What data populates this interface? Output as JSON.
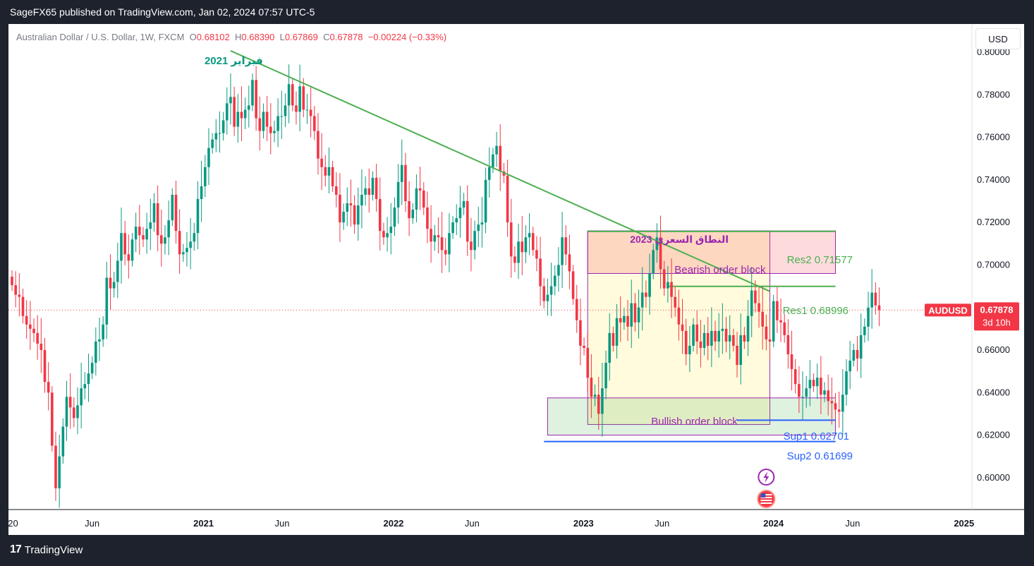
{
  "header": {
    "publisher": "SageFX65 published on TradingView.com, Jan 02, 2024 07:57 UTC-5"
  },
  "legend": {
    "symbol": "Australian Dollar / U.S. Dollar, 1W, FXCM",
    "open_label": "O",
    "open": "0.68102",
    "high_label": "H",
    "high": "0.68390",
    "low_label": "L",
    "low": "0.67869",
    "close_label": "C",
    "close": "0.67878",
    "change": "−0.00224 (−0.33%)"
  },
  "currency_button": "USD",
  "footer": {
    "brand": "TradingView",
    "logo_glyph": "17"
  },
  "colors": {
    "up": "#089981",
    "down": "#f23645",
    "trend": "#4caf50",
    "support": "#2962ff",
    "annotation": "#9c27b0"
  },
  "chart_data": {
    "type": "candlestick",
    "x_start": "2019-12-30",
    "interval": "1W",
    "ylim": [
      0.585,
      0.806
    ],
    "y_ticks": [
      0.6,
      0.62,
      0.64,
      0.66,
      0.68,
      0.7,
      0.72,
      0.74,
      0.76,
      0.78,
      0.8
    ],
    "y_tick_labels": [
      "0.60000",
      "0.62000",
      "0.64000",
      "0.66000",
      "0.68000",
      "0.70000",
      "0.72000",
      "0.74000",
      "0.76000",
      "0.78000",
      "0.80000"
    ],
    "x_tick_labels": [
      "20",
      "Jun",
      "2021",
      "Jun",
      "2022",
      "Jun",
      "2023",
      "Jun",
      "2024",
      "Jun",
      "2025"
    ],
    "x_tick_dates": [
      "2020-01-01",
      "2020-06-01",
      "2021-01-01",
      "2021-06-01",
      "2022-01-01",
      "2022-06-01",
      "2023-01-01",
      "2023-06-01",
      "2024-01-01",
      "2024-06-01",
      "2025-01-01"
    ],
    "last_price": {
      "symbol": "AUDUSD",
      "price": "0.67878",
      "countdown": "3d 10h",
      "value": 0.67878
    },
    "closes": [
      0.6905,
      0.686,
      0.685,
      0.676,
      0.672,
      0.67,
      0.668,
      0.663,
      0.66,
      0.645,
      0.64,
      0.615,
      0.595,
      0.61,
      0.624,
      0.638,
      0.633,
      0.628,
      0.634,
      0.642,
      0.644,
      0.649,
      0.654,
      0.664,
      0.665,
      0.672,
      0.694,
      0.689,
      0.692,
      0.702,
      0.715,
      0.705,
      0.702,
      0.712,
      0.718,
      0.714,
      0.712,
      0.717,
      0.72,
      0.729,
      0.714,
      0.71,
      0.713,
      0.721,
      0.733,
      0.716,
      0.705,
      0.706,
      0.708,
      0.711,
      0.715,
      0.731,
      0.737,
      0.746,
      0.755,
      0.759,
      0.762,
      0.762,
      0.768,
      0.776,
      0.779,
      0.765,
      0.772,
      0.769,
      0.773,
      0.775,
      0.787,
      0.769,
      0.763,
      0.772,
      0.765,
      0.762,
      0.763,
      0.77,
      0.77,
      0.775,
      0.785,
      0.775,
      0.772,
      0.784,
      0.773,
      0.773,
      0.77,
      0.763,
      0.75,
      0.746,
      0.742,
      0.746,
      0.737,
      0.733,
      0.72,
      0.725,
      0.729,
      0.728,
      0.719,
      0.728,
      0.733,
      0.736,
      0.733,
      0.741,
      0.731,
      0.716,
      0.713,
      0.715,
      0.718,
      0.727,
      0.739,
      0.747,
      0.73,
      0.722,
      0.726,
      0.736,
      0.735,
      0.727,
      0.717,
      0.711,
      0.714,
      0.713,
      0.707,
      0.705,
      0.715,
      0.72,
      0.722,
      0.727,
      0.73,
      0.711,
      0.707,
      0.716,
      0.719,
      0.72,
      0.74,
      0.746,
      0.752,
      0.756,
      0.744,
      0.742,
      0.72,
      0.704,
      0.701,
      0.711,
      0.706,
      0.713,
      0.715,
      0.707,
      0.703,
      0.69,
      0.683,
      0.686,
      0.69,
      0.695,
      0.7,
      0.713,
      0.705,
      0.697,
      0.684,
      0.674,
      0.662,
      0.661,
      0.647,
      0.638,
      0.639,
      0.63,
      0.642,
      0.654,
      0.668,
      0.662,
      0.675,
      0.673,
      0.676,
      0.671,
      0.682,
      0.673,
      0.68,
      0.687,
      0.685,
      0.696,
      0.707,
      0.713,
      0.698,
      0.689,
      0.692,
      0.685,
      0.68,
      0.672,
      0.669,
      0.658,
      0.662,
      0.672,
      0.664,
      0.661,
      0.668,
      0.662,
      0.669,
      0.664,
      0.669,
      0.67,
      0.664,
      0.667,
      0.662,
      0.653,
      0.667,
      0.664,
      0.676,
      0.688,
      0.682,
      0.678,
      0.671,
      0.665,
      0.664,
      0.683,
      0.674,
      0.673,
      0.667,
      0.658,
      0.651,
      0.644,
      0.638,
      0.638,
      0.642,
      0.646,
      0.643,
      0.647,
      0.639,
      0.641,
      0.636,
      0.635,
      0.632,
      0.631,
      0.639,
      0.65,
      0.655,
      0.66,
      0.656,
      0.667,
      0.671,
      0.68,
      0.687,
      0.681,
      0.6788
    ],
    "res2": 0.71577,
    "res1": 0.68996,
    "sup1": 0.62701,
    "sup2": 0.61699,
    "trendline": {
      "from": {
        "x": "2021-02-22",
        "y": 0.8007
      },
      "to": {
        "x": "2023-12-25",
        "y": 0.6876
      }
    },
    "range_2023": {
      "x_from": "2023-01-09",
      "x_to": "2023-12-25",
      "y_from": 0.625,
      "y_to": 0.716
    },
    "bearish_block": {
      "x_from": "2023-01-09",
      "x_to": "2024-04-29",
      "y_from": 0.696,
      "y_to": 0.716
    },
    "bullish_block": {
      "x_from": "2022-10-24",
      "x_to": "2024-04-29",
      "y_from": 0.62,
      "y_to": 0.6375
    },
    "res1_segment": {
      "x_from": "2023-06-12",
      "x_to": "2024-04-29"
    },
    "sup1_segment": {
      "x_from": "2023-10-23",
      "x_to": "2024-04-29"
    },
    "sup2_segment": {
      "x_from": "2022-10-17",
      "x_to": "2024-04-29"
    },
    "annotations": {
      "feb2021": "فبراير 2021",
      "range2023": "النطاق السعري 2023",
      "bearish": "Bearish order block",
      "bullish": "Bullish order block",
      "res2": "Res2 0.71577",
      "res1": "Res1 0.68996",
      "sup1": "Sup1 0.62701",
      "sup2": "Sup2 0.61699"
    },
    "event_icons": [
      "lightning-icon",
      "us-flag-icon"
    ]
  }
}
